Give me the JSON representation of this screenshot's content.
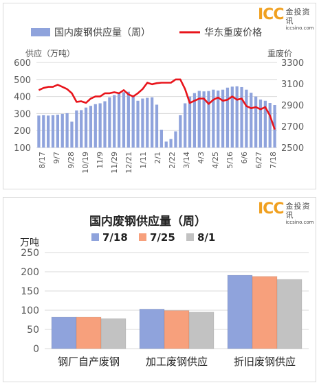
{
  "logo": {
    "icc": "ICC",
    "cn": "金投资讯",
    "url": "iccsino.com"
  },
  "colors": {
    "bar_blue": "#8fa3dc",
    "line_red": "#e8141b",
    "grid": "#d9d9d9",
    "axis_text": "#595959",
    "series_7_18": "#8fa3dc",
    "series_7_25": "#f7a07c",
    "series_8_1": "#c2c2c2"
  },
  "chart_data": [
    {
      "type": "bar+line",
      "legend": {
        "bar": "国内废钢供应量（周）",
        "line": "华东重废价格",
        "placement": "top"
      },
      "ylabel_left": "供应（万吨）",
      "ylabel_right": "重废价",
      "ylim_left": [
        100,
        600
      ],
      "yticks_left": [
        100,
        200,
        300,
        400,
        500,
        600
      ],
      "ylim_right": [
        2500,
        3300
      ],
      "yticks_right": [
        2500,
        2700,
        2900,
        3100,
        3300
      ],
      "x_tick_labels": [
        "8/17",
        "9/7",
        "9/28",
        "10/19",
        "11/9",
        "11/29",
        "12/21",
        "1/11",
        "2/1",
        "2/22",
        "3/14",
        "4/3",
        "4/25",
        "5/16",
        "6/6",
        "6/27",
        "7/18"
      ],
      "supply": [
        288,
        290,
        288,
        290,
        293,
        298,
        302,
        252,
        318,
        320,
        335,
        345,
        355,
        360,
        372,
        395,
        408,
        418,
        425,
        428,
        400,
        375,
        388,
        392,
        395,
        352,
        205,
        135,
        150,
        195,
        290,
        360,
        400,
        420,
        433,
        430,
        432,
        440,
        435,
        440,
        452,
        458,
        460,
        455,
        440,
        422,
        400,
        382,
        375,
        362,
        350
      ],
      "price": [
        3040,
        3060,
        3070,
        3070,
        3090,
        3070,
        3050,
        3010,
        2930,
        2935,
        2920,
        2960,
        2980,
        2980,
        3010,
        3010,
        3020,
        3010,
        3040,
        3000,
        2980,
        3010,
        3050,
        3110,
        3095,
        3105,
        3110,
        3110,
        3110,
        3140,
        3140,
        3050,
        2920,
        2940,
        2960,
        2960,
        2910,
        2950,
        2970,
        2940,
        2950,
        2980,
        2950,
        2960,
        2890,
        2870,
        2880,
        2860,
        2880,
        2800,
        2670
      ]
    },
    {
      "type": "bar",
      "title": "国内废钢供应量（周）",
      "ylabel": "万吨",
      "ylim": [
        0,
        250
      ],
      "yticks": [
        0,
        50,
        100,
        150,
        200,
        250
      ],
      "categories": [
        "钢厂自产废钢",
        "加工废钢供应",
        "折旧废钢供应"
      ],
      "series": [
        {
          "name": "7/18",
          "values": [
            82,
            103,
            191
          ]
        },
        {
          "name": "7/25",
          "values": [
            82,
            99,
            188
          ]
        },
        {
          "name": "8/1",
          "values": [
            78,
            95,
            180
          ]
        }
      ],
      "legend_placement": "top"
    }
  ]
}
